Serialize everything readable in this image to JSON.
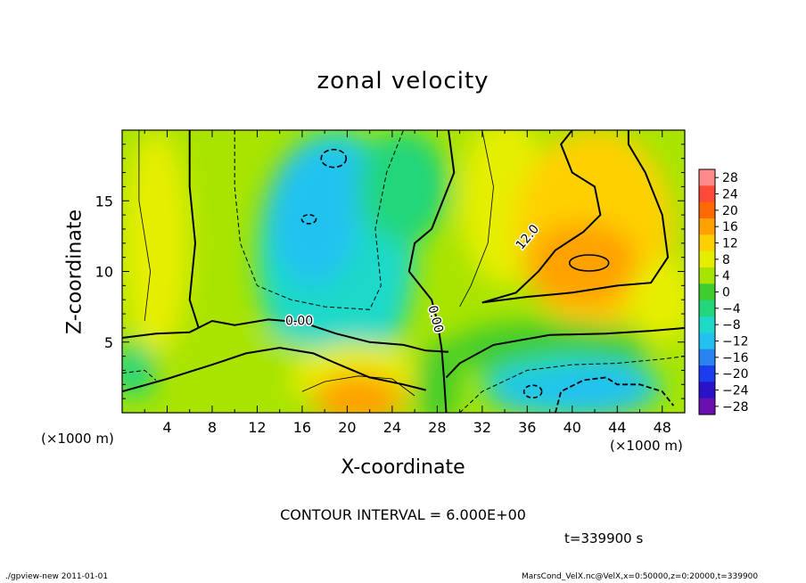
{
  "chart_data": {
    "type": "heatmap",
    "title": "zonal velocity",
    "xlabel": "X-coordinate",
    "ylabel": "Z-coordinate",
    "x_unit": "(×1000 m)",
    "x_unit_right": "(×1000 m)",
    "xlim": [
      0,
      50
    ],
    "ylim": [
      0,
      20
    ],
    "x_ticks": [
      4,
      8,
      12,
      16,
      20,
      24,
      28,
      32,
      36,
      40,
      44,
      48
    ],
    "y_ticks": [
      5,
      10,
      15
    ],
    "colorbar_levels": [
      28,
      24,
      20,
      16,
      12,
      8,
      4,
      0,
      -4,
      -8,
      -12,
      -16,
      -20,
      -24,
      -28
    ],
    "colorbar_colors": [
      "#ff8a8a",
      "#ff4a3a",
      "#ff6a00",
      "#ffa200",
      "#ffd000",
      "#e6ee00",
      "#a8e400",
      "#3fcc2e",
      "#22d67a",
      "#1fd9c8",
      "#22c2f0",
      "#2a84f0",
      "#1c3cf0",
      "#2a12c8",
      "#6a10b0"
    ],
    "contour_interval": "CONTOUR INTERVAL = 6.000E+00",
    "contour_labels": [
      "12.0",
      "0.00",
      "0.00"
    ],
    "approx_field": [
      {
        "region": "upper right",
        "x": 41,
        "z": 11,
        "value": 16
      },
      {
        "region": "bottom center",
        "x": 21,
        "z": 0.5,
        "value": 19
      },
      {
        "region": "bottom right",
        "x": 42,
        "z": 1.5,
        "value": -14
      },
      {
        "region": "upper middle",
        "x": 16,
        "z": 13,
        "value": -9
      },
      {
        "region": "left",
        "x": 2,
        "z": 12,
        "value": 5
      }
    ],
    "time": "t=339900 s"
  },
  "footer": {
    "left": "./gpview-new   2011-01-01",
    "right": "MarsCond_VelX.nc@VelX,x=0:50000,z=0:20000,t=339900"
  }
}
